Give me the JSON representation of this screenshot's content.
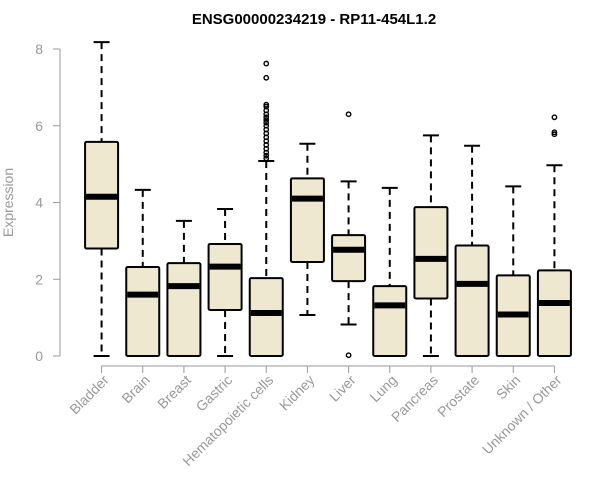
{
  "chart_data": {
    "type": "box",
    "title": "ENSG00000234219 - RP11-454L1.2",
    "ylabel": "Expression",
    "xlabel": "",
    "ylim": [
      0,
      8.2
    ],
    "yticks": [
      0,
      2,
      4,
      6,
      8
    ],
    "box_fill": "#efe8d0",
    "categories": [
      "Bladder",
      "Brain",
      "Breast",
      "Gastric",
      "Hematopoietic cells",
      "Kidney",
      "Liver",
      "Lung",
      "Pancreas",
      "Prostate",
      "Skin",
      "Unknown / Other"
    ],
    "boxes": [
      {
        "q1": 2.8,
        "median": 4.15,
        "q3": 5.58,
        "whisker_low": 0.0,
        "whisker_high": 8.18,
        "outliers": []
      },
      {
        "q1": 0.0,
        "median": 1.6,
        "q3": 2.32,
        "whisker_low": 0.0,
        "whisker_high": 4.33,
        "outliers": []
      },
      {
        "q1": 0.0,
        "median": 1.82,
        "q3": 2.42,
        "whisker_low": 0.0,
        "whisker_high": 3.52,
        "outliers": []
      },
      {
        "q1": 1.2,
        "median": 2.33,
        "q3": 2.92,
        "whisker_low": 0.0,
        "whisker_high": 3.83,
        "outliers": []
      },
      {
        "q1": 0.0,
        "median": 1.12,
        "q3": 2.03,
        "whisker_low": 0.0,
        "whisker_high": 5.08,
        "outliers": [
          5.15,
          5.22,
          5.3,
          5.4,
          5.5,
          5.6,
          5.7,
          5.8,
          5.9,
          6.0,
          6.08,
          6.15,
          6.22,
          6.3,
          6.4,
          6.5,
          6.55,
          7.25,
          7.62
        ]
      },
      {
        "q1": 2.45,
        "median": 4.1,
        "q3": 4.63,
        "whisker_low": 1.07,
        "whisker_high": 5.53,
        "outliers": []
      },
      {
        "q1": 1.95,
        "median": 2.77,
        "q3": 3.15,
        "whisker_low": 0.82,
        "whisker_high": 4.55,
        "outliers": [
          0.02,
          6.3
        ]
      },
      {
        "q1": 0.0,
        "median": 1.32,
        "q3": 1.82,
        "whisker_low": 0.0,
        "whisker_high": 4.38,
        "outliers": []
      },
      {
        "q1": 1.5,
        "median": 2.53,
        "q3": 3.88,
        "whisker_low": 0.0,
        "whisker_high": 5.75,
        "outliers": []
      },
      {
        "q1": 0.0,
        "median": 1.88,
        "q3": 2.88,
        "whisker_low": 0.0,
        "whisker_high": 5.48,
        "outliers": []
      },
      {
        "q1": 0.0,
        "median": 1.08,
        "q3": 2.1,
        "whisker_low": 0.0,
        "whisker_high": 4.42,
        "outliers": []
      },
      {
        "q1": 0.0,
        "median": 1.38,
        "q3": 2.23,
        "whisker_low": 0.0,
        "whisker_high": 4.97,
        "outliers": [
          5.78,
          5.83,
          6.22
        ]
      }
    ]
  }
}
